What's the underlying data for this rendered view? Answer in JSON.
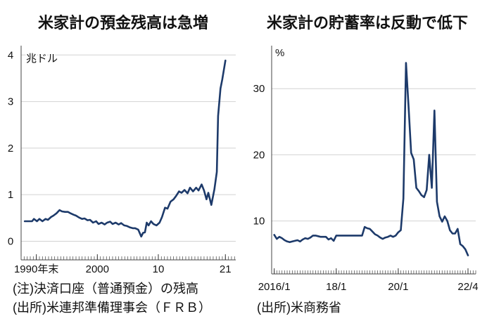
{
  "chart_data": [
    {
      "type": "line",
      "title": "米家計の預金残高は急増",
      "ylabel": "兆ドル",
      "xlim": [
        1987.5,
        2022.7
      ],
      "ylim": [
        -0.4,
        4.2
      ],
      "y_ticks": [
        0,
        1,
        2,
        3,
        4
      ],
      "x_ticks": [
        {
          "value": 1990,
          "label": "1990年末"
        },
        {
          "value": 2000,
          "label": "2000"
        },
        {
          "value": 2010,
          "label": "10"
        },
        {
          "value": 2021,
          "label": "21"
        }
      ],
      "grid": true,
      "series": [
        {
          "color": "#1d3a6a",
          "x": [
            1988.1,
            1989.3,
            1989.6,
            1990.1,
            1990.5,
            1991.0,
            1991.5,
            1991.9,
            1992.4,
            1992.8,
            1993.3,
            1993.8,
            1994.2,
            1994.7,
            1995.2,
            1995.6,
            1996.1,
            1996.5,
            1997.0,
            1997.5,
            1997.9,
            1998.4,
            1998.8,
            1999.3,
            1999.8,
            2000.2,
            2000.7,
            2001.2,
            2001.6,
            2002.1,
            2002.5,
            2003.0,
            2003.5,
            2003.9,
            2004.4,
            2004.8,
            2005.3,
            2005.8,
            2006.2,
            2006.7,
            2007.2,
            2007.5,
            2007.8,
            2008.1,
            2008.4,
            2008.8,
            2009.2,
            2009.7,
            2010.2,
            2010.6,
            2011.1,
            2011.5,
            2012.0,
            2012.5,
            2012.9,
            2013.4,
            2013.8,
            2014.3,
            2014.8,
            2015.2,
            2015.7,
            2016.2,
            2016.6,
            2017.1,
            2017.5,
            2017.9,
            2018.2,
            2018.7,
            2019.2,
            2019.6,
            2019.8,
            2020.2,
            2020.5,
            2021.0
          ],
          "values": [
            0.43,
            0.43,
            0.48,
            0.43,
            0.48,
            0.43,
            0.48,
            0.46,
            0.52,
            0.55,
            0.6,
            0.67,
            0.64,
            0.63,
            0.63,
            0.6,
            0.57,
            0.55,
            0.51,
            0.48,
            0.49,
            0.45,
            0.46,
            0.4,
            0.43,
            0.37,
            0.4,
            0.36,
            0.4,
            0.42,
            0.37,
            0.4,
            0.36,
            0.39,
            0.34,
            0.33,
            0.3,
            0.28,
            0.28,
            0.25,
            0.1,
            0.18,
            0.19,
            0.4,
            0.34,
            0.43,
            0.37,
            0.34,
            0.4,
            0.52,
            0.72,
            0.7,
            0.85,
            0.9,
            0.97,
            1.07,
            1.04,
            1.1,
            1.03,
            1.15,
            1.07,
            1.15,
            1.09,
            1.22,
            1.09,
            0.9,
            1.04,
            0.78,
            1.12,
            1.49,
            2.69,
            3.28,
            3.48,
            3.88
          ]
        }
      ],
      "note": "(注)決済口座（普通預金）の残高",
      "source": "(出所)米連邦準備理事会（ＦＲＢ）"
    },
    {
      "type": "line",
      "title": "米家計の貯蓄率は反動で低下",
      "ylabel": "%",
      "xlim": [
        "2015-12",
        "2022-07"
      ],
      "ylim": [
        2,
        36.5
      ],
      "y_ticks": [
        10,
        20,
        30
      ],
      "x_ticks": [
        {
          "value": "2016-01",
          "label": "2016/1"
        },
        {
          "value": "2018-01",
          "label": "18/1"
        },
        {
          "value": "2020-01",
          "label": "20/1"
        },
        {
          "value": "2022-04",
          "label": "22/4"
        }
      ],
      "grid": true,
      "series": [
        {
          "color": "#1d3a6a",
          "x": [
            "2016-01",
            "2016-02",
            "2016-03",
            "2016-04",
            "2016-05",
            "2016-06",
            "2016-07",
            "2016-08",
            "2016-09",
            "2016-10",
            "2016-11",
            "2016-12",
            "2017-01",
            "2017-02",
            "2017-03",
            "2017-04",
            "2017-05",
            "2017-06",
            "2017-07",
            "2017-08",
            "2017-09",
            "2017-10",
            "2017-11",
            "2017-12",
            "2018-01",
            "2018-02",
            "2018-03",
            "2018-04",
            "2018-05",
            "2018-06",
            "2018-07",
            "2018-08",
            "2018-09",
            "2018-10",
            "2018-11",
            "2018-12",
            "2019-01",
            "2019-02",
            "2019-03",
            "2019-04",
            "2019-05",
            "2019-06",
            "2019-07",
            "2019-08",
            "2019-09",
            "2019-10",
            "2019-11",
            "2019-12",
            "2020-01",
            "2020-02",
            "2020-03",
            "2020-04",
            "2020-05",
            "2020-06",
            "2020-07",
            "2020-08",
            "2020-09",
            "2020-10",
            "2020-11",
            "2020-12",
            "2021-01",
            "2021-02",
            "2021-03",
            "2021-04",
            "2021-05",
            "2021-06",
            "2021-07",
            "2021-08",
            "2021-09",
            "2021-10",
            "2021-11",
            "2021-12",
            "2022-01",
            "2022-02",
            "2022-03",
            "2022-04"
          ],
          "values": [
            7.9,
            7.3,
            7.6,
            7.4,
            7.1,
            6.9,
            6.8,
            6.9,
            7.0,
            7.1,
            6.9,
            7.2,
            7.4,
            7.3,
            7.5,
            7.8,
            7.8,
            7.7,
            7.6,
            7.6,
            7.6,
            7.2,
            7.4,
            7.0,
            7.8,
            7.8,
            7.8,
            7.8,
            7.8,
            7.8,
            7.8,
            7.8,
            7.8,
            7.8,
            7.8,
            9.1,
            8.9,
            8.8,
            8.4,
            8.0,
            7.8,
            7.5,
            7.3,
            7.5,
            7.6,
            7.8,
            7.6,
            7.8,
            8.3,
            8.6,
            13.4,
            33.9,
            27.2,
            20.3,
            19.3,
            15.0,
            14.5,
            13.9,
            13.6,
            14.7,
            20.0,
            15.0,
            26.7,
            12.9,
            10.7,
            9.9,
            10.7,
            10.0,
            8.6,
            8.1,
            8.1,
            8.8,
            6.5,
            6.2,
            5.7,
            4.8
          ]
        }
      ],
      "source": "(出所)米商務省"
    }
  ]
}
